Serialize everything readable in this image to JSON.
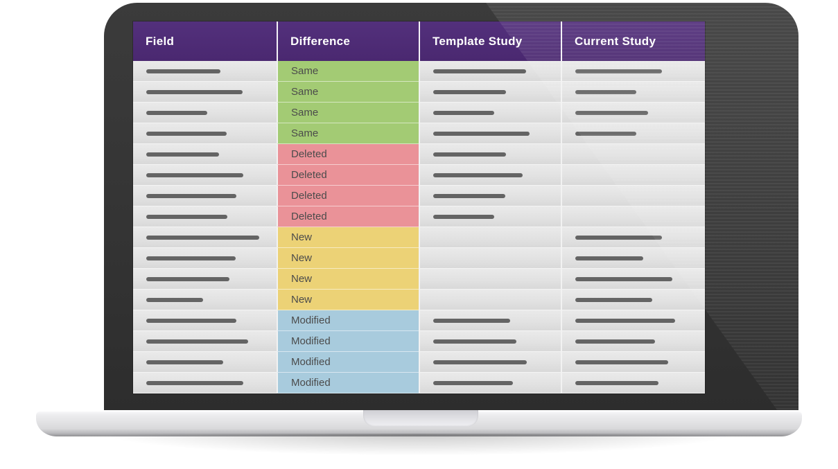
{
  "table": {
    "columns": [
      {
        "key": "field",
        "label": "Field"
      },
      {
        "key": "difference",
        "label": "Difference"
      },
      {
        "key": "template",
        "label": "Template Study"
      },
      {
        "key": "current",
        "label": "Current Study"
      }
    ],
    "rows": [
      {
        "difference": "Same",
        "status": "same",
        "field_bar": 107,
        "template_bar": 134,
        "current_bar": 125
      },
      {
        "difference": "Same",
        "status": "same",
        "field_bar": 139,
        "template_bar": 105,
        "current_bar": 88
      },
      {
        "difference": "Same",
        "status": "same",
        "field_bar": 88,
        "template_bar": 88,
        "current_bar": 105
      },
      {
        "difference": "Same",
        "status": "same",
        "field_bar": 116,
        "template_bar": 139,
        "current_bar": 88
      },
      {
        "difference": "Deleted",
        "status": "deleted",
        "field_bar": 105,
        "template_bar": 105,
        "current_bar": 0
      },
      {
        "difference": "Deleted",
        "status": "deleted",
        "field_bar": 140,
        "template_bar": 129,
        "current_bar": 0
      },
      {
        "difference": "Deleted",
        "status": "deleted",
        "field_bar": 130,
        "template_bar": 104,
        "current_bar": 0
      },
      {
        "difference": "Deleted",
        "status": "deleted",
        "field_bar": 117,
        "template_bar": 88,
        "current_bar": 0
      },
      {
        "difference": "New",
        "status": "new",
        "field_bar": 163,
        "template_bar": 0,
        "current_bar": 125
      },
      {
        "difference": "New",
        "status": "new",
        "field_bar": 129,
        "template_bar": 0,
        "current_bar": 98
      },
      {
        "difference": "New",
        "status": "new",
        "field_bar": 120,
        "template_bar": 0,
        "current_bar": 140
      },
      {
        "difference": "New",
        "status": "new",
        "field_bar": 82,
        "template_bar": 0,
        "current_bar": 111
      },
      {
        "difference": "Modified",
        "status": "modified",
        "field_bar": 130,
        "template_bar": 111,
        "current_bar": 144
      },
      {
        "difference": "Modified",
        "status": "modified",
        "field_bar": 147,
        "template_bar": 120,
        "current_bar": 115
      },
      {
        "difference": "Modified",
        "status": "modified",
        "field_bar": 111,
        "template_bar": 135,
        "current_bar": 134
      },
      {
        "difference": "Modified",
        "status": "modified",
        "field_bar": 140,
        "template_bar": 115,
        "current_bar": 120
      }
    ]
  },
  "status_colors": {
    "same": "#a3cb74",
    "deleted": "#ea9298",
    "new": "#ecd276",
    "modified": "#a8cbdd"
  },
  "theme": {
    "header_bg": "#4c2a71",
    "header_text": "#ffffff",
    "bar_color": "#646464",
    "status_text": "#4b4b4b"
  }
}
